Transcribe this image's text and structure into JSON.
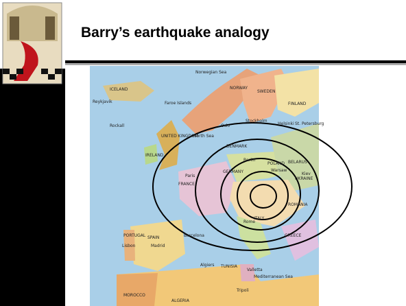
{
  "slide": {
    "title": "Barry’s earthquake analogy"
  },
  "map": {
    "labels": [
      "Norwegian Sea",
      "ICELAND",
      "NORWAY",
      "SWEDEN",
      "FINLAND",
      "Reykjavik",
      "Faroe Islands",
      "UNITED KINGDOM",
      "IRELAND",
      "North Sea",
      "Oslo",
      "Stockholm",
      "Helsinki",
      "St. Petersburg",
      "DENMARK",
      "GERMANY",
      "POLAND",
      "BELARUS",
      "UKRAINE",
      "FRANCE",
      "Paris",
      "Berlin",
      "Warsaw",
      "Kiev",
      "ITALY",
      "Rome",
      "ROMANIA",
      "GREECE",
      "PORTUGAL",
      "Lisbon",
      "SPAIN",
      "Madrid",
      "Barcelona",
      "Algiers",
      "TUNISIA",
      "Valletta",
      "Tripoli",
      "Mediterranean Sea",
      "MOROCCO",
      "ALGERIA",
      "Rockall"
    ]
  }
}
